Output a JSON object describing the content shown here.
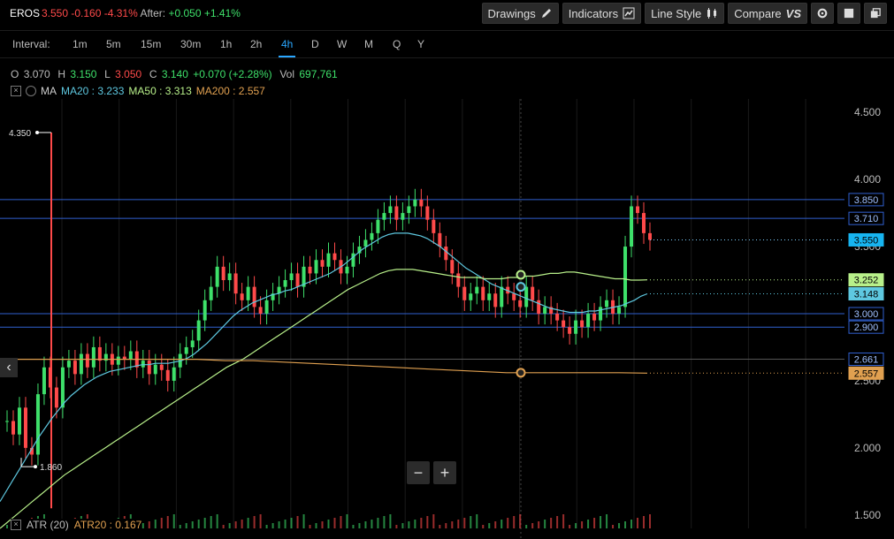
{
  "header": {
    "symbol": "EROS",
    "price": "3.550",
    "change": "-0.160",
    "change_pct": "-4.31%",
    "after_label": "After:",
    "after_change": "+0.050",
    "after_pct": "+1.41%"
  },
  "toolbar": {
    "drawings": "Drawings",
    "indicators": "Indicators",
    "line_style": "Line Style",
    "compare": "Compare",
    "compare_icon": "VS"
  },
  "intervals": {
    "label": "Interval:",
    "items": [
      "1m",
      "5m",
      "15m",
      "30m",
      "1h",
      "2h",
      "4h",
      "D",
      "W",
      "M",
      "Q",
      "Y"
    ],
    "active": "4h"
  },
  "ohlc": {
    "o_label": "O",
    "o": "3.070",
    "h_label": "H",
    "h": "3.150",
    "l_label": "L",
    "l": "3.050",
    "c_label": "C",
    "c": "3.140",
    "chg": "+0.070 (+2.28%)",
    "vol_label": "Vol",
    "vol": "697,761"
  },
  "ma_legend": {
    "title": "MA",
    "ma20": "MA20 : 3.233",
    "ma50": "MA50 : 3.313",
    "ma200": "MA200 : 2.557"
  },
  "atr": {
    "label": "ATR (20)",
    "value": "ATR20 : 0.167"
  },
  "zoom": {
    "minus": "−",
    "plus": "+"
  },
  "colors": {
    "up": "#3ee06a",
    "down": "#ff4a4a",
    "ma20": "#5ec8e0",
    "ma50": "#b8f08a",
    "ma200": "#e0a050",
    "hline": "#3060d0",
    "accent": "#2aa7ff"
  },
  "chart_data": {
    "type": "candlestick",
    "ylim": [
      1.4,
      4.6
    ],
    "y_ticks": [
      "4.500",
      "4.000",
      "3.500",
      "3.000",
      "2.500",
      "2.000",
      "1.500"
    ],
    "annotations": {
      "high_label": "4.350",
      "low_label": "1.860"
    },
    "horizontal_lines": [
      3.85,
      3.71,
      3.0,
      2.9
    ],
    "price_labels": [
      {
        "text": "3.850",
        "value": 3.85,
        "style": "line"
      },
      {
        "text": "3.710",
        "value": 3.71,
        "style": "line"
      },
      {
        "text": "3.550",
        "value": 3.55,
        "style": "last"
      },
      {
        "text": "3.252",
        "value": 3.252,
        "style": "ma50"
      },
      {
        "text": "3.148",
        "value": 3.148,
        "style": "ma20"
      },
      {
        "text": "3.000",
        "value": 3.0,
        "style": "line"
      },
      {
        "text": "2.900",
        "value": 2.9,
        "style": "line"
      },
      {
        "text": "2.661",
        "value": 2.661,
        "style": "line"
      },
      {
        "text": "2.557",
        "value": 2.557,
        "style": "ma200"
      }
    ],
    "closes": [
      2.2,
      2.1,
      2.3,
      2.0,
      1.95,
      2.4,
      2.6,
      2.45,
      2.3,
      2.6,
      2.65,
      2.55,
      2.7,
      2.6,
      2.75,
      2.65,
      2.7,
      2.62,
      2.68,
      2.66,
      2.72,
      2.6,
      2.65,
      2.55,
      2.62,
      2.58,
      2.5,
      2.6,
      2.7,
      2.75,
      2.8,
      2.95,
      3.1,
      3.2,
      3.35,
      3.25,
      3.3,
      3.15,
      3.1,
      3.2,
      3.05,
      3.0,
      3.1,
      3.15,
      3.2,
      3.25,
      3.3,
      3.2,
      3.35,
      3.3,
      3.4,
      3.35,
      3.45,
      3.4,
      3.3,
      3.35,
      3.45,
      3.5,
      3.55,
      3.6,
      3.7,
      3.75,
      3.8,
      3.7,
      3.75,
      3.8,
      3.85,
      3.8,
      3.7,
      3.6,
      3.5,
      3.4,
      3.3,
      3.2,
      3.1,
      3.15,
      3.2,
      3.1,
      3.15,
      3.05,
      3.2,
      3.15,
      3.1,
      3.05,
      3.2,
      3.1,
      3.0,
      3.05,
      3.0,
      2.95,
      2.9,
      2.85,
      2.95,
      2.9,
      3.0,
      2.95,
      3.05,
      3.1,
      3.0,
      3.05,
      3.5,
      3.8,
      3.75,
      3.6,
      3.55
    ],
    "ma20": [
      1.6,
      1.68,
      1.76,
      1.84,
      1.92,
      2.0,
      2.08,
      2.15,
      2.22,
      2.28,
      2.34,
      2.39,
      2.43,
      2.47,
      2.5,
      2.53,
      2.55,
      2.57,
      2.58,
      2.59,
      2.6,
      2.61,
      2.62,
      2.62,
      2.63,
      2.63,
      2.63,
      2.64,
      2.65,
      2.67,
      2.7,
      2.74,
      2.78,
      2.83,
      2.88,
      2.93,
      2.98,
      3.02,
      3.05,
      3.08,
      3.1,
      3.12,
      3.14,
      3.15,
      3.17,
      3.18,
      3.2,
      3.22,
      3.24,
      3.26,
      3.28,
      3.3,
      3.33,
      3.36,
      3.4,
      3.44,
      3.48,
      3.51,
      3.54,
      3.57,
      3.59,
      3.6,
      3.6,
      3.6,
      3.59,
      3.58,
      3.56,
      3.53,
      3.5,
      3.46,
      3.42,
      3.38,
      3.34,
      3.31,
      3.28,
      3.25,
      3.22,
      3.2,
      3.18,
      3.16,
      3.14,
      3.12,
      3.1,
      3.08,
      3.06,
      3.04,
      3.03,
      3.02,
      3.01,
      3.01,
      3.01,
      3.02,
      3.02,
      3.03,
      3.04,
      3.05,
      3.06,
      3.08,
      3.1,
      3.13,
      3.148
    ],
    "ma50": [
      1.4,
      1.45,
      1.5,
      1.55,
      1.6,
      1.65,
      1.7,
      1.75,
      1.8,
      1.84,
      1.88,
      1.92,
      1.96,
      2.0,
      2.04,
      2.08,
      2.12,
      2.16,
      2.2,
      2.24,
      2.28,
      2.32,
      2.36,
      2.4,
      2.44,
      2.48,
      2.52,
      2.56,
      2.6,
      2.63,
      2.66,
      2.7,
      2.74,
      2.78,
      2.82,
      2.86,
      2.9,
      2.94,
      2.98,
      3.02,
      3.06,
      3.1,
      3.14,
      3.18,
      3.21,
      3.24,
      3.27,
      3.3,
      3.32,
      3.33,
      3.33,
      3.33,
      3.32,
      3.31,
      3.3,
      3.29,
      3.28,
      3.27,
      3.27,
      3.27,
      3.26,
      3.26,
      3.26,
      3.27,
      3.27,
      3.28,
      3.28,
      3.29,
      3.3,
      3.3,
      3.31,
      3.31,
      3.3,
      3.29,
      3.28,
      3.27,
      3.26,
      3.26,
      3.25,
      3.25,
      3.252
    ],
    "ma200": [
      2.66,
      2.66,
      2.66,
      2.66,
      2.66,
      2.66,
      2.66,
      2.66,
      2.65,
      2.65,
      2.64,
      2.63,
      2.62,
      2.61,
      2.6,
      2.59,
      2.58,
      2.57,
      2.56,
      2.56,
      2.56,
      2.56,
      2.56,
      2.557
    ]
  }
}
